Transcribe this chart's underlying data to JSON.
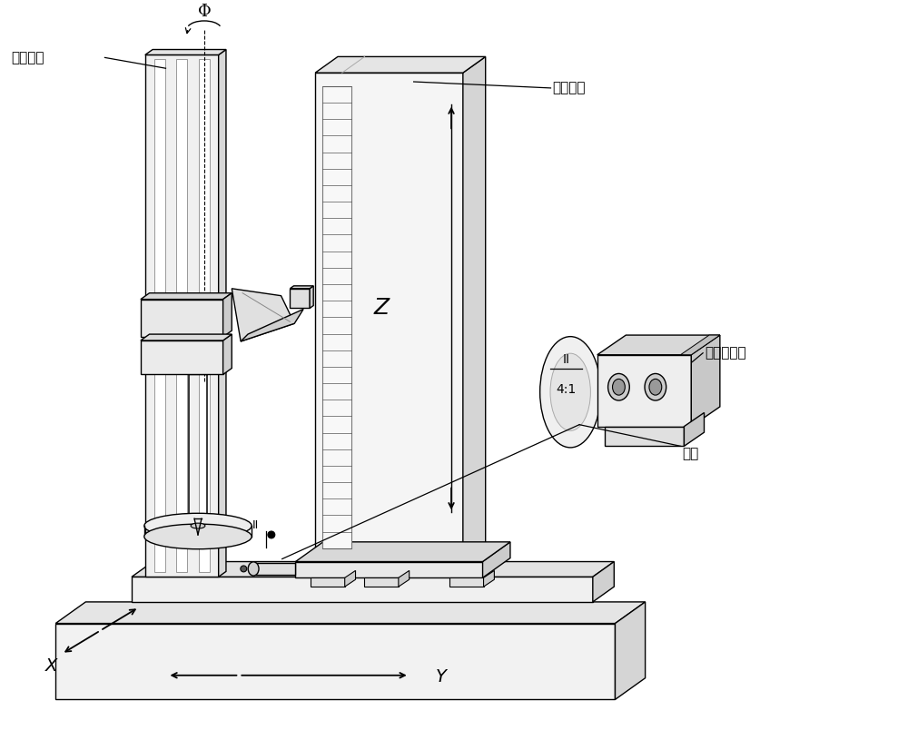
{
  "bg_color": "#ffffff",
  "line_color": "#000000",
  "lw": 1.0,
  "labels": {
    "gongjianzhu": "工件立柱",
    "celiangzhu": "测量立柱",
    "zhijiaokuai": "直角校准块",
    "cetou": "测头",
    "phi": "Φ",
    "Z": "Z",
    "X": "X",
    "Y": "Y",
    "II": "II",
    "scale": "4:1"
  },
  "figure_size": [
    10.0,
    8.26
  ],
  "dpi": 100
}
